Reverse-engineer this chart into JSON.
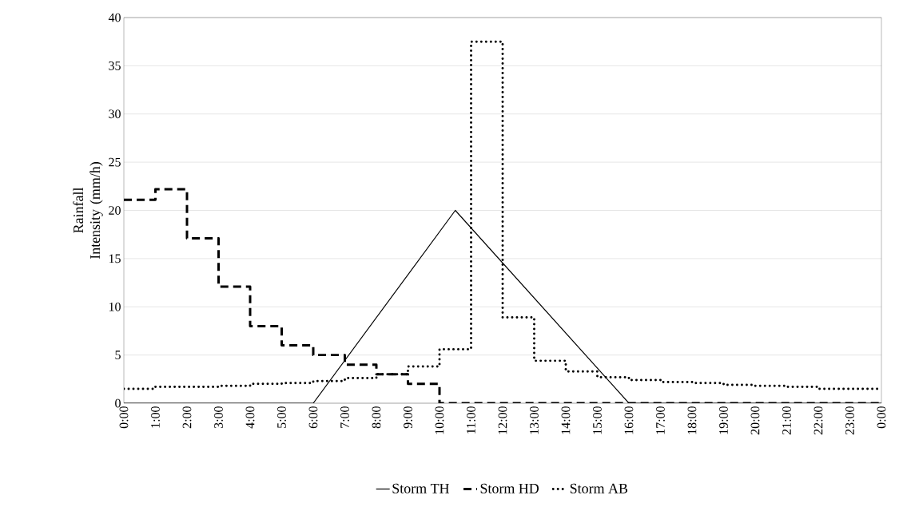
{
  "chart_data": {
    "type": "step",
    "ylabel": "Rainfall Intensity (mm/h)",
    "xlim": [
      0,
      24
    ],
    "ylim": [
      0,
      40
    ],
    "yticks": [
      0,
      5,
      10,
      15,
      20,
      25,
      30,
      35,
      40
    ],
    "xticks": [
      {
        "value": 0,
        "label": "0:00"
      },
      {
        "value": 1,
        "label": "1:00"
      },
      {
        "value": 2,
        "label": "2:00"
      },
      {
        "value": 3,
        "label": "3:00"
      },
      {
        "value": 4,
        "label": "4:00"
      },
      {
        "value": 5,
        "label": "5:00"
      },
      {
        "value": 6,
        "label": "6:00"
      },
      {
        "value": 7,
        "label": "7:00"
      },
      {
        "value": 8,
        "label": "8:00"
      },
      {
        "value": 9,
        "label": "9:00"
      },
      {
        "value": 10,
        "label": "10:00"
      },
      {
        "value": 11,
        "label": "11:00"
      },
      {
        "value": 12,
        "label": "12:00"
      },
      {
        "value": 13,
        "label": "13:00"
      },
      {
        "value": 14,
        "label": "14:00"
      },
      {
        "value": 15,
        "label": "15:00"
      },
      {
        "value": 16,
        "label": "16:00"
      },
      {
        "value": 17,
        "label": "17:00"
      },
      {
        "value": 18,
        "label": "18:00"
      },
      {
        "value": 19,
        "label": "19:00"
      },
      {
        "value": 20,
        "label": "20:00"
      },
      {
        "value": 21,
        "label": "21:00"
      },
      {
        "value": 22,
        "label": "22:00"
      },
      {
        "value": 23,
        "label": "23:00"
      },
      {
        "value": 24,
        "label": "0:00"
      }
    ],
    "grid": "y",
    "legend": "bottom",
    "series": [
      {
        "name": "Storm TH",
        "type": "line",
        "line_style": "solid",
        "color": "#000000",
        "x": [
          0,
          6,
          10.5,
          16,
          24
        ],
        "values": [
          0,
          0,
          20,
          0,
          0
        ]
      },
      {
        "name": "Storm HD",
        "line_style": "dashed",
        "color": "#000000",
        "x": [
          0,
          1,
          2,
          3,
          4,
          5,
          6,
          7,
          8,
          9,
          10,
          11,
          12,
          13,
          14,
          15,
          16,
          17,
          18,
          19,
          20,
          21,
          22,
          23,
          24
        ],
        "values": [
          21.1,
          22.2,
          17.1,
          12.1,
          8.0,
          6.0,
          5.0,
          4.0,
          3.0,
          2.0,
          0,
          0,
          0,
          0,
          0,
          0,
          0,
          0,
          0,
          0,
          0,
          0,
          0,
          0,
          0
        ]
      },
      {
        "name": "Storm AB",
        "line_style": "dotted",
        "color": "#000000",
        "x": [
          0,
          1,
          2,
          3,
          4,
          5,
          6,
          7,
          8,
          9,
          10,
          11,
          12,
          13,
          14,
          15,
          16,
          17,
          18,
          19,
          20,
          21,
          22,
          23,
          24
        ],
        "values": [
          1.5,
          1.7,
          1.7,
          1.8,
          2.0,
          2.1,
          2.3,
          2.6,
          3.0,
          3.8,
          5.6,
          37.5,
          8.9,
          4.4,
          3.3,
          2.7,
          2.4,
          2.2,
          2.1,
          1.9,
          1.8,
          1.7,
          1.5,
          1.5,
          1.5
        ]
      }
    ]
  }
}
